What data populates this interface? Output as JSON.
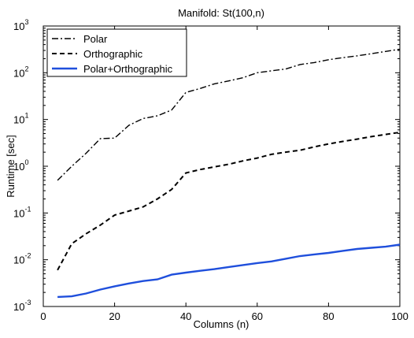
{
  "chart_data": {
    "type": "line",
    "title": "Manifold: St(100,n)",
    "xlabel": "Columns (n)",
    "ylabel": "Runtime [sec]",
    "xlim": [
      0,
      100
    ],
    "ylim": [
      0.001,
      1000
    ],
    "yscale": "log",
    "grid": false,
    "legend_position": "top-left",
    "x_ticks": [
      "0",
      "20",
      "40",
      "60",
      "80",
      "100"
    ],
    "y_ticks": [
      {
        "base": "10",
        "exp": "-3"
      },
      {
        "base": "10",
        "exp": "-2"
      },
      {
        "base": "10",
        "exp": "-1"
      },
      {
        "base": "10",
        "exp": "0"
      },
      {
        "base": "10",
        "exp": "1"
      },
      {
        "base": "10",
        "exp": "2"
      },
      {
        "base": "10",
        "exp": "3"
      }
    ],
    "x": [
      4,
      8,
      12,
      16,
      20,
      24,
      28,
      32,
      36,
      40,
      44,
      48,
      52,
      56,
      60,
      64,
      68,
      72,
      76,
      80,
      84,
      88,
      92,
      96,
      100
    ],
    "series": [
      {
        "name": "Polar",
        "style": "dash-dot",
        "color": "#000000",
        "values": [
          0.5,
          1.0,
          1.9,
          3.9,
          4.0,
          7.5,
          10.5,
          12.0,
          16.0,
          38.0,
          46.0,
          58.0,
          67.0,
          78.0,
          100.0,
          110.0,
          120.0,
          150.0,
          165.0,
          190.0,
          210.0,
          230.0,
          255.0,
          285.0,
          320.0
        ]
      },
      {
        "name": "Orthographic",
        "style": "dashed",
        "color": "#000000",
        "values": [
          0.006,
          0.022,
          0.036,
          0.055,
          0.09,
          0.11,
          0.135,
          0.2,
          0.32,
          0.72,
          0.85,
          0.97,
          1.1,
          1.3,
          1.5,
          1.8,
          2.0,
          2.2,
          2.6,
          3.0,
          3.4,
          3.8,
          4.3,
          4.8,
          5.3
        ]
      },
      {
        "name": "Polar+Orthographic",
        "style": "solid",
        "color": "#1f4fdc",
        "values": [
          0.0016,
          0.00165,
          0.0019,
          0.0023,
          0.0027,
          0.0031,
          0.0035,
          0.0038,
          0.0048,
          0.0053,
          0.0058,
          0.0063,
          0.007,
          0.0077,
          0.0085,
          0.0092,
          0.0105,
          0.012,
          0.013,
          0.014,
          0.0155,
          0.017,
          0.018,
          0.019,
          0.021
        ]
      }
    ]
  }
}
